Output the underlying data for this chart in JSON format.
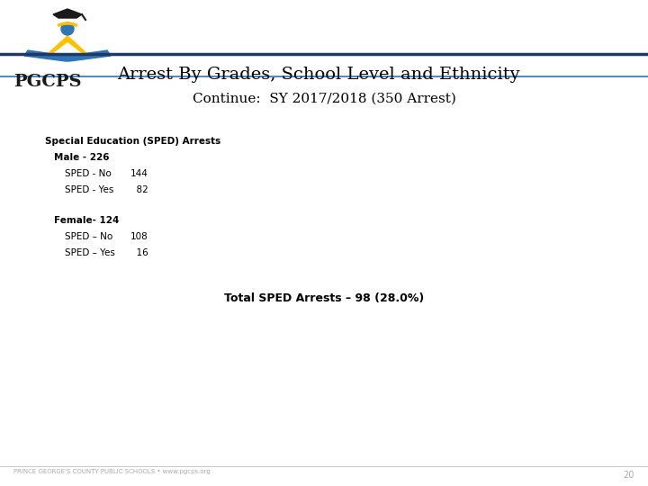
{
  "title": "Arrest By Grades, School Level and Ethnicity",
  "subtitle": "Continue:  SY 2017/2018 (350 Arrest)",
  "section_header": "Special Education (SPED) Arrests",
  "male_header": "Male - 226",
  "male_rows": [
    {
      "label": "SPED - No",
      "value": "144"
    },
    {
      "label": "SPED - Yes",
      "value": "  82"
    }
  ],
  "female_header": "Female- 124",
  "female_rows": [
    {
      "label": "SPED – No",
      "value": "108"
    },
    {
      "label": "SPED – Yes",
      "value": "  16"
    }
  ],
  "total_line": "Total SPED Arrests – 98 (28.0%)",
  "footer": "PRINCE GEORGE'S COUNTY PUBLIC SCHOOLS • www.pgcps.org",
  "page_number": "20",
  "line_color_dark": "#1f3864",
  "line_color_mid": "#2e75b6",
  "bg_color": "#ffffff",
  "text_color": "#000000",
  "footer_color": "#aaaaaa",
  "logo_blue": "#2e75b6",
  "logo_gold": "#ffc000",
  "logo_dark": "#1a1a1a"
}
